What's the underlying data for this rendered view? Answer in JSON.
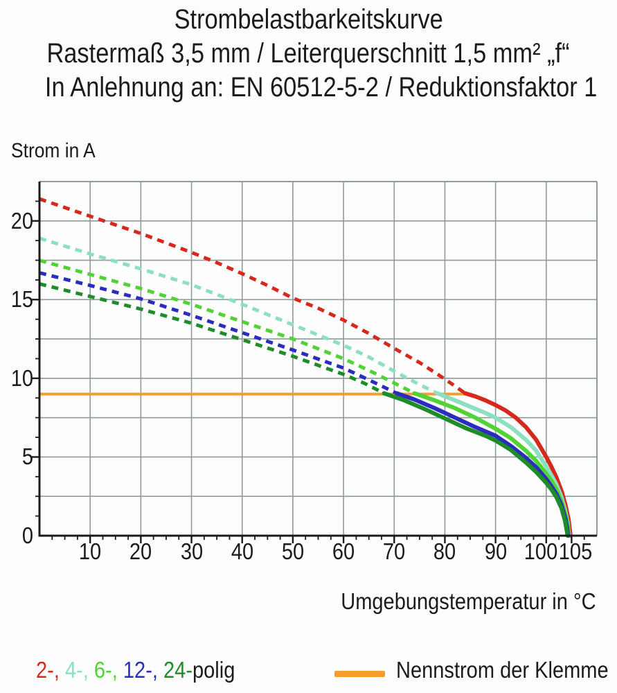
{
  "title": {
    "line1": "Strombelastbarkeitskurve",
    "line2": "Rastermaß 3,5 mm / Leiterquerschnitt 1,5 mm² „f“",
    "line3": "In Anlehnung an: EN 60512-5-2 / Reduktionsfaktor 1"
  },
  "legend": {
    "segments": [
      {
        "text": "2-,",
        "color": "#d7281e"
      },
      {
        "text": " 4-,",
        "color": "#8ce0bf"
      },
      {
        "text": " 6-,",
        "color": "#52d335"
      },
      {
        "text": " 12-,",
        "color": "#2a2cbe"
      },
      {
        "text": " 24-",
        "color": "#1e8c28"
      },
      {
        "text": "polig",
        "color": "#1b1b1b"
      }
    ],
    "nominal_label": "Nennstrom der Klemme"
  },
  "chart_data": {
    "type": "line",
    "title": "Strombelastbarkeitskurve",
    "subtitle": "Rastermaß 3,5 mm / Leiterquerschnitt 1,5 mm² „f“ / In Anlehnung an: EN 60512-5-2 / Reduktionsfaktor 1",
    "xlabel": "Umgebungstemperatur in °C",
    "ylabel": "Strom in A",
    "xlim": [
      0,
      110
    ],
    "ylim": [
      0,
      22.5
    ],
    "grid": true,
    "x_gridline_step": 10,
    "y_gridline_step": 2.5,
    "x_minor_step": 2.5,
    "y_minor_step": 1.25,
    "grid_color": "#8f9a9a",
    "axis_color": "#1a1a1a",
    "x_ticks": [
      {
        "v": 10,
        "label": "10"
      },
      {
        "v": 20,
        "label": "20"
      },
      {
        "v": 30,
        "label": "30"
      },
      {
        "v": 40,
        "label": "40"
      },
      {
        "v": 50,
        "label": "50"
      },
      {
        "v": 60,
        "label": "60"
      },
      {
        "v": 70,
        "label": "70"
      },
      {
        "v": 80,
        "label": "80"
      },
      {
        "v": 90,
        "label": "90"
      },
      {
        "v": 100,
        "label": "100",
        "dx": -8
      },
      {
        "v": 105,
        "label": "105",
        "dx": 6
      }
    ],
    "y_ticks": [
      {
        "v": 0,
        "label": "0"
      },
      {
        "v": 5,
        "label": "5"
      },
      {
        "v": 10,
        "label": "10"
      },
      {
        "v": 15,
        "label": "15"
      },
      {
        "v": 20,
        "label": "20"
      }
    ],
    "nominal_current": {
      "value": 9,
      "x_start": 0,
      "x_end": 84.2,
      "color": "#f59d2a",
      "label": "Nennstrom der Klemme"
    },
    "series": [
      {
        "name": "2-polig",
        "color": "#d7281e",
        "dashed": [
          [
            0,
            21.4
          ],
          [
            5,
            20.85
          ],
          [
            10,
            20.3
          ],
          [
            15,
            19.75
          ],
          [
            20,
            19.2
          ],
          [
            25,
            18.6
          ],
          [
            30,
            18.0
          ],
          [
            35,
            17.35
          ],
          [
            40,
            16.65
          ],
          [
            45,
            15.9
          ],
          [
            50,
            15.1
          ],
          [
            55,
            14.45
          ],
          [
            60,
            13.7
          ],
          [
            65,
            12.85
          ],
          [
            70,
            11.9
          ],
          [
            75,
            11.0
          ],
          [
            80,
            9.95
          ],
          [
            84,
            9.05
          ]
        ],
        "solid": [
          [
            84,
            9.05
          ],
          [
            86,
            8.85
          ],
          [
            88,
            8.6
          ],
          [
            90,
            8.3
          ],
          [
            92,
            7.95
          ],
          [
            94,
            7.5
          ],
          [
            96,
            6.9
          ],
          [
            98,
            6.1
          ],
          [
            100,
            5.0
          ],
          [
            101,
            4.4
          ],
          [
            102,
            3.7
          ],
          [
            103,
            2.85
          ],
          [
            103.8,
            1.95
          ],
          [
            104.4,
            1.05
          ],
          [
            104.8,
            0
          ]
        ]
      },
      {
        "name": "4-polig",
        "color": "#8ce0bf",
        "dashed": [
          [
            0,
            18.9
          ],
          [
            10,
            17.9
          ],
          [
            20,
            16.95
          ],
          [
            30,
            15.95
          ],
          [
            40,
            14.7
          ],
          [
            50,
            13.4
          ],
          [
            60,
            12.1
          ],
          [
            65,
            11.35
          ],
          [
            70,
            10.45
          ],
          [
            75,
            9.6
          ],
          [
            78.5,
            9.05
          ]
        ],
        "solid": [
          [
            78.5,
            9.05
          ],
          [
            82,
            8.6
          ],
          [
            85,
            8.2
          ],
          [
            88,
            7.8
          ],
          [
            90,
            7.5
          ],
          [
            93,
            6.9
          ],
          [
            96,
            6.1
          ],
          [
            98,
            5.4
          ],
          [
            100,
            4.4
          ],
          [
            101,
            3.85
          ],
          [
            102,
            3.25
          ],
          [
            103,
            2.45
          ],
          [
            103.8,
            1.55
          ],
          [
            104.3,
            0.7
          ],
          [
            104.5,
            0
          ]
        ]
      },
      {
        "name": "6-polig",
        "color": "#52d335",
        "dashed": [
          [
            0,
            17.5
          ],
          [
            10,
            16.6
          ],
          [
            20,
            15.7
          ],
          [
            30,
            14.7
          ],
          [
            40,
            13.6
          ],
          [
            50,
            12.5
          ],
          [
            60,
            11.25
          ],
          [
            65,
            10.5
          ],
          [
            70,
            9.7
          ],
          [
            74,
            9.05
          ]
        ],
        "solid": [
          [
            74,
            9.05
          ],
          [
            78,
            8.6
          ],
          [
            82,
            8.1
          ],
          [
            86,
            7.5
          ],
          [
            90,
            6.8
          ],
          [
            93,
            6.2
          ],
          [
            96,
            5.4
          ],
          [
            98,
            4.75
          ],
          [
            100,
            3.95
          ],
          [
            101,
            3.5
          ],
          [
            102,
            2.95
          ],
          [
            103,
            2.2
          ],
          [
            103.8,
            1.35
          ],
          [
            104.3,
            0.55
          ],
          [
            104.4,
            0
          ]
        ]
      },
      {
        "name": "12-polig",
        "color": "#2a2cbe",
        "dashed": [
          [
            0,
            16.7
          ],
          [
            10,
            15.9
          ],
          [
            20,
            15.05
          ],
          [
            30,
            14.0
          ],
          [
            40,
            12.9
          ],
          [
            50,
            11.8
          ],
          [
            60,
            10.65
          ],
          [
            65,
            9.9
          ],
          [
            70.5,
            9.05
          ]
        ],
        "solid": [
          [
            70.5,
            9.05
          ],
          [
            74,
            8.65
          ],
          [
            78,
            8.1
          ],
          [
            82,
            7.5
          ],
          [
            86,
            6.9
          ],
          [
            90,
            6.35
          ],
          [
            93,
            5.7
          ],
          [
            96,
            4.95
          ],
          [
            98,
            4.35
          ],
          [
            100,
            3.6
          ],
          [
            101,
            3.15
          ],
          [
            102,
            2.65
          ],
          [
            103,
            1.95
          ],
          [
            103.8,
            1.1
          ],
          [
            104.2,
            0.35
          ],
          [
            104.3,
            0
          ]
        ]
      },
      {
        "name": "24-polig",
        "color": "#1e8c28",
        "dashed": [
          [
            0,
            16.0
          ],
          [
            10,
            15.2
          ],
          [
            20,
            14.4
          ],
          [
            30,
            13.5
          ],
          [
            40,
            12.45
          ],
          [
            50,
            11.4
          ],
          [
            60,
            10.25
          ],
          [
            64,
            9.7
          ],
          [
            68,
            9.05
          ]
        ],
        "solid": [
          [
            68,
            9.05
          ],
          [
            72,
            8.6
          ],
          [
            76,
            8.05
          ],
          [
            80,
            7.45
          ],
          [
            84,
            6.85
          ],
          [
            88,
            6.35
          ],
          [
            90,
            6.05
          ],
          [
            93,
            5.45
          ],
          [
            96,
            4.65
          ],
          [
            98,
            4.05
          ],
          [
            100,
            3.35
          ],
          [
            101,
            2.95
          ],
          [
            102,
            2.45
          ],
          [
            103,
            1.75
          ],
          [
            103.7,
            0.95
          ],
          [
            104.1,
            0.25
          ],
          [
            104.2,
            0
          ]
        ]
      }
    ]
  }
}
